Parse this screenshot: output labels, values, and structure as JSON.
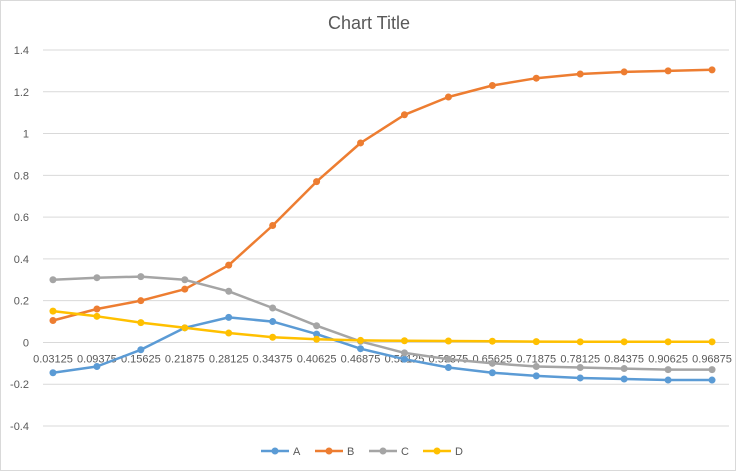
{
  "chart_data": {
    "type": "line",
    "title": "Chart Title",
    "xlabel": "",
    "ylabel": "",
    "categories": [
      "0.03125",
      "0.09375",
      "0.15625",
      "0.21875",
      "0.28125",
      "0.34375",
      "0.40625",
      "0.46875",
      "0.53125",
      "0.59375",
      "0.65625",
      "0.71875",
      "0.78125",
      "0.84375",
      "0.90625",
      "0.96875"
    ],
    "ylim": [
      -0.4,
      1.4
    ],
    "yticks": [
      "-0.4",
      "-0.2",
      "0",
      "0.2",
      "0.4",
      "0.6",
      "0.8",
      "1",
      "1.2",
      "1.4"
    ],
    "grid": true,
    "legend_position": "bottom",
    "series": [
      {
        "name": "A",
        "color": "#5b9bd5",
        "values": [
          -0.145,
          -0.115,
          -0.035,
          0.07,
          0.12,
          0.1,
          0.04,
          -0.03,
          -0.08,
          -0.12,
          -0.145,
          -0.16,
          -0.17,
          -0.175,
          -0.18,
          -0.18
        ]
      },
      {
        "name": "B",
        "color": "#ed7d31",
        "values": [
          0.105,
          0.16,
          0.2,
          0.255,
          0.37,
          0.56,
          0.77,
          0.955,
          1.09,
          1.175,
          1.23,
          1.265,
          1.285,
          1.295,
          1.3,
          1.305
        ]
      },
      {
        "name": "C",
        "color": "#a5a5a5",
        "values": [
          0.3,
          0.31,
          0.315,
          0.3,
          0.245,
          0.165,
          0.08,
          0.005,
          -0.05,
          -0.08,
          -0.1,
          -0.115,
          -0.12,
          -0.125,
          -0.13,
          -0.13
        ]
      },
      {
        "name": "D",
        "color": "#ffc000",
        "values": [
          0.15,
          0.125,
          0.095,
          0.07,
          0.045,
          0.025,
          0.015,
          0.01,
          0.008,
          0.007,
          0.006,
          0.004,
          0.003,
          0.003,
          0.003,
          0.003
        ]
      }
    ]
  }
}
